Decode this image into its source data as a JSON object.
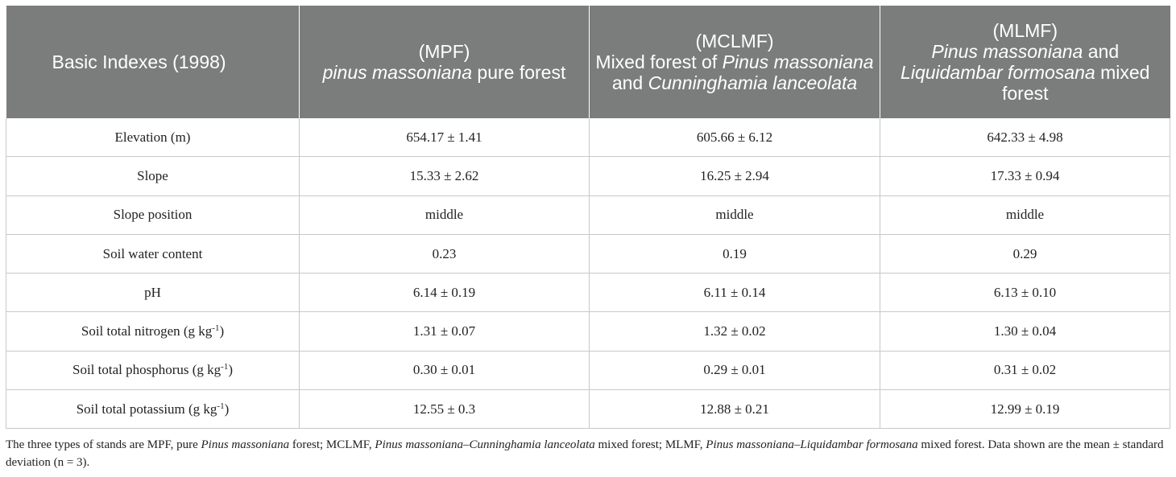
{
  "table": {
    "corner_label": "Basic Indexes (1998)",
    "columns": [
      {
        "code": "(MPF)",
        "name_parts": [
          {
            "t": "pinus massoniana",
            "i": true
          },
          {
            "t": " pure forest",
            "i": false
          }
        ]
      },
      {
        "code": "(MCLMF)",
        "name_parts": [
          {
            "t": "Mixed forest of ",
            "i": false
          },
          {
            "t": "Pinus massoniana",
            "i": true
          },
          {
            "t": " and ",
            "i": false
          },
          {
            "t": "Cunninghamia lanceolata",
            "i": true
          }
        ]
      },
      {
        "code": "(MLMF)",
        "name_parts": [
          {
            "t": "Pinus massoniana",
            "i": true
          },
          {
            "t": " and ",
            "i": false
          },
          {
            "t": "Liquidambar formosana",
            "i": true
          },
          {
            "t": " mixed forest",
            "i": false
          }
        ]
      }
    ],
    "rows": [
      {
        "label": "Elevation (m)",
        "unit_sup": "",
        "unit_close": "",
        "values": [
          "654.17 ± 1.41",
          "605.66 ± 6.12",
          "642.33 ± 4.98"
        ]
      },
      {
        "label": "Slope",
        "unit_sup": "",
        "unit_close": "",
        "values": [
          "15.33 ± 2.62",
          "16.25 ± 2.94",
          "17.33 ± 0.94"
        ]
      },
      {
        "label": "Slope position",
        "unit_sup": "",
        "unit_close": "",
        "values": [
          "middle",
          "middle",
          "middle"
        ]
      },
      {
        "label": "Soil water content",
        "unit_sup": "",
        "unit_close": "",
        "values": [
          "0.23",
          "0.19",
          "0.29"
        ]
      },
      {
        "label": "pH",
        "unit_sup": "",
        "unit_close": "",
        "values": [
          "6.14 ± 0.19",
          "6.11 ± 0.14",
          "6.13 ± 0.10"
        ]
      },
      {
        "label": "Soil total nitrogen (g kg",
        "unit_sup": "-1",
        "unit_close": ")",
        "values": [
          "1.31 ± 0.07",
          "1.32 ± 0.02",
          "1.30 ± 0.04"
        ]
      },
      {
        "label": "Soil total phosphorus (g kg",
        "unit_sup": "-1",
        "unit_close": ")",
        "values": [
          "0.30 ± 0.01",
          "0.29 ± 0.01",
          "0.31 ± 0.02"
        ]
      },
      {
        "label": "Soil total potassium (g kg",
        "unit_sup": "-1",
        "unit_close": ")",
        "values": [
          "12.55 ± 0.3",
          "12.88 ± 0.21",
          "12.99 ± 0.19"
        ]
      }
    ]
  },
  "footnote_parts": [
    {
      "t": "The three types of stands are MPF, pure ",
      "i": false
    },
    {
      "t": "Pinus massoniana",
      "i": true
    },
    {
      "t": " forest; MCLMF, ",
      "i": false
    },
    {
      "t": "Pinus massoniana–Cunninghamia lanceolata",
      "i": true
    },
    {
      "t": " mixed forest; MLMF, ",
      "i": false
    },
    {
      "t": "Pinus massoniana–Liquidambar formosana",
      "i": true
    },
    {
      "t": " mixed forest. Data shown are the mean ± standard deviation (n = 3).",
      "i": false
    }
  ]
}
